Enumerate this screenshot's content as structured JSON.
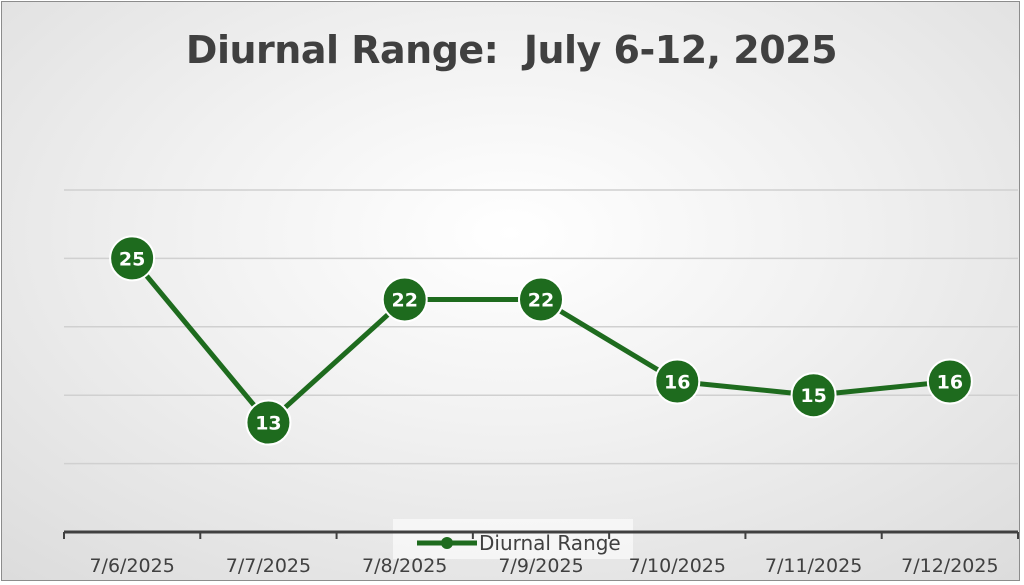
{
  "chart_data": {
    "type": "line",
    "title": "Diurnal Range:  July 6-12, 2025",
    "categories": [
      "7/6/2025",
      "7/7/2025",
      "7/8/2025",
      "7/9/2025",
      "7/10/2025",
      "7/11/2025",
      "7/12/2025"
    ],
    "series": [
      {
        "name": "Diurnal Range",
        "values": [
          25,
          13,
          22,
          22,
          16,
          15,
          16
        ],
        "color": "#1e6b1e"
      }
    ],
    "ylim": [
      5,
      30
    ],
    "yticks": [
      5,
      10,
      15,
      20,
      25,
      30
    ],
    "grid": true,
    "data_labels": true,
    "legend": "bottom",
    "colors": {
      "series": "#1e6b1e",
      "label_text": "#ffffff",
      "grid": "#d0d0d0",
      "axis": "#404040",
      "text": "#404040"
    }
  }
}
